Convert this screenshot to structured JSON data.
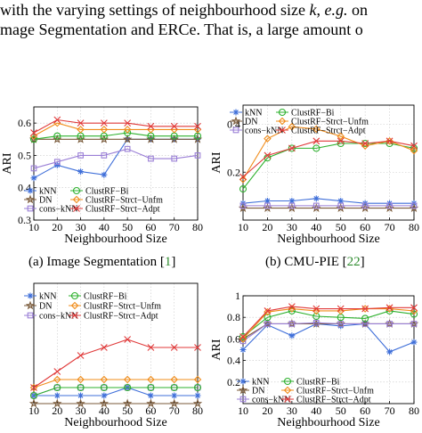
{
  "paragraph": {
    "line1": {
      "before": "with the varying settings of neighbourhood size ",
      "var_k": "k",
      "comma": ", ",
      "eg": "e.g.",
      "after": " on"
    },
    "line2": "mage Segmentation and ERCe. That is, a large amount o"
  },
  "captions": {
    "a": {
      "label": "(a)  Image Segmentation [",
      "ref": "1",
      "close": "]"
    },
    "b": {
      "label": "(b)  CMU-PIE [",
      "ref": "22",
      "close": "]"
    }
  },
  "colors": {
    "kNN": "#3f6fd9",
    "DN": "#7a5a3a",
    "cons-kNN": "#9a7fd6",
    "ClustRF-Bi": "#2eb12e",
    "ClustRF-Strct-Unfm": "#f08c1a",
    "ClustRF-Strct-Adpt": "#e03a3a",
    "cite": "#2e8b2e"
  },
  "chart_data": [
    {
      "type": "line",
      "xlabel": "Neighbourhood Size",
      "ylabel": "ARI",
      "x": [
        10,
        20,
        30,
        40,
        50,
        60,
        70,
        80
      ],
      "xlim": [
        10,
        80
      ],
      "ylim": [
        0.3,
        0.65
      ],
      "yticks": [
        "0.3",
        "0.4",
        "0.5",
        "0.6"
      ],
      "ytick_values": [
        0.3,
        0.4,
        0.5,
        0.6
      ],
      "grid": true,
      "legend": "bottom-left",
      "series": [
        {
          "name": "kNN",
          "values": [
            0.43,
            0.47,
            0.45,
            0.44,
            0.55,
            0.55,
            0.55,
            0.55
          ]
        },
        {
          "name": "DN",
          "values": [
            0.55,
            0.55,
            0.55,
            0.55,
            0.55,
            0.55,
            0.55,
            0.55
          ]
        },
        {
          "name": "cons−kNN",
          "values": [
            0.46,
            0.48,
            0.5,
            0.5,
            0.52,
            0.49,
            0.49,
            0.5
          ]
        },
        {
          "name": "ClustRF−Bi",
          "values": [
            0.55,
            0.56,
            0.56,
            0.56,
            0.57,
            0.56,
            0.56,
            0.56
          ]
        },
        {
          "name": "ClustRF−Strct−Unfm",
          "values": [
            0.56,
            0.6,
            0.58,
            0.58,
            0.58,
            0.58,
            0.58,
            0.58
          ]
        },
        {
          "name": "ClustRF−Strct−Adpt",
          "values": [
            0.57,
            0.61,
            0.6,
            0.6,
            0.6,
            0.59,
            0.59,
            0.59
          ]
        }
      ]
    },
    {
      "type": "line",
      "xlabel": "Neighbourhood Size",
      "ylabel": "ARI",
      "x": [
        10,
        20,
        30,
        40,
        50,
        60,
        70,
        80
      ],
      "xlim": [
        10,
        80
      ],
      "ylim": [
        0,
        0.48
      ],
      "yticks": [
        "0.2",
        "0.4"
      ],
      "ytick_values": [
        0.2,
        0.4
      ],
      "grid": true,
      "legend": "top",
      "series": [
        {
          "name": "kNN",
          "values": [
            0.07,
            0.08,
            0.08,
            0.09,
            0.08,
            0.07,
            0.07,
            0.07
          ]
        },
        {
          "name": "DN",
          "values": [
            0.05,
            0.05,
            0.05,
            0.05,
            0.05,
            0.05,
            0.05,
            0.05
          ]
        },
        {
          "name": "cons−kNN",
          "values": [
            0.06,
            0.06,
            0.06,
            0.06,
            0.06,
            0.06,
            0.06,
            0.06
          ]
        },
        {
          "name": "ClustRF−Bi",
          "values": [
            0.13,
            0.26,
            0.3,
            0.3,
            0.32,
            0.32,
            0.32,
            0.3
          ]
        },
        {
          "name": "ClustRF−Strct−Unfm",
          "values": [
            0.17,
            0.34,
            0.39,
            0.38,
            0.35,
            0.31,
            0.33,
            0.29
          ]
        },
        {
          "name": "ClustRF−Strct−Adpt",
          "values": [
            0.18,
            0.27,
            0.3,
            0.33,
            0.33,
            0.32,
            0.33,
            0.31
          ]
        }
      ]
    },
    {
      "type": "line",
      "xlabel": "Neighbourhood Size",
      "ylabel": "",
      "x": [
        10,
        20,
        30,
        40,
        50,
        60,
        70,
        80
      ],
      "xlim": [
        10,
        80
      ],
      "ylim": [
        0,
        0.15
      ],
      "yticks": [],
      "ytick_values": [],
      "grid": true,
      "legend": "top-left",
      "series": [
        {
          "name": "kNN",
          "values": [
            0.01,
            0.01,
            0.01,
            0.01,
            0.02,
            0.01,
            0.01,
            0.01
          ]
        },
        {
          "name": "DN",
          "values": [
            0.0,
            0.0,
            0.0,
            0.0,
            0.0,
            0.0,
            0.0,
            0.0
          ]
        },
        {
          "name": "cons−kNN",
          "values": [
            0.01,
            0.02,
            0.02,
            0.02,
            0.02,
            0.02,
            0.02,
            0.02
          ]
        },
        {
          "name": "ClustRF−Bi",
          "values": [
            0.01,
            0.02,
            0.02,
            0.02,
            0.02,
            0.02,
            0.02,
            0.02
          ]
        },
        {
          "name": "ClustRF−Strct−Unfm",
          "values": [
            0.02,
            0.03,
            0.03,
            0.03,
            0.03,
            0.03,
            0.03,
            0.03
          ]
        },
        {
          "name": "ClustRF−Strct−Adpt",
          "values": [
            0.02,
            0.04,
            0.06,
            0.07,
            0.08,
            0.07,
            0.07,
            0.07
          ]
        }
      ]
    },
    {
      "type": "line",
      "xlabel": "Neighbourhood Size",
      "ylabel": "ARI",
      "x": [
        10,
        20,
        30,
        40,
        50,
        60,
        70,
        80
      ],
      "xlim": [
        10,
        80
      ],
      "ylim": [
        0,
        1
      ],
      "yticks": [
        "0.2",
        "0.4",
        "0.6",
        "0.8",
        "1"
      ],
      "ytick_values": [
        0.2,
        0.4,
        0.6,
        0.8,
        1.0
      ],
      "grid": true,
      "legend": "bottom",
      "series": [
        {
          "name": "kNN",
          "values": [
            0.5,
            0.73,
            0.63,
            0.74,
            0.72,
            0.74,
            0.48,
            0.57
          ]
        },
        {
          "name": "DN",
          "values": [
            0.6,
            0.74,
            0.74,
            0.74,
            0.74,
            0.74,
            0.74,
            0.74
          ]
        },
        {
          "name": "cons−kNN",
          "values": [
            0.58,
            0.74,
            0.74,
            0.75,
            0.74,
            0.74,
            0.74,
            0.74
          ]
        },
        {
          "name": "ClustRF−Bi",
          "values": [
            0.62,
            0.8,
            0.86,
            0.81,
            0.8,
            0.79,
            0.86,
            0.83
          ]
        },
        {
          "name": "ClustRF−Strct−Unfm",
          "values": [
            0.6,
            0.85,
            0.88,
            0.86,
            0.86,
            0.88,
            0.88,
            0.86
          ]
        },
        {
          "name": "ClustRF−Strct−Adpt",
          "values": [
            0.62,
            0.86,
            0.9,
            0.88,
            0.88,
            0.88,
            0.89,
            0.89
          ]
        }
      ]
    }
  ]
}
